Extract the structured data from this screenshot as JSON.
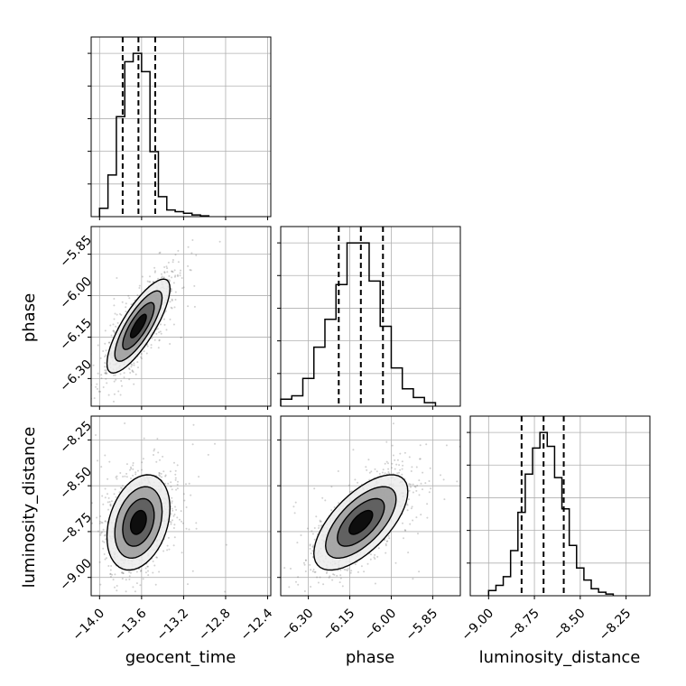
{
  "chart_data": {
    "type": "corner",
    "parameters": [
      "geocent_time",
      "phase",
      "luminosity_distance"
    ],
    "axis_labels": {
      "geocent_time": "geocent_time",
      "phase": "phase",
      "luminosity_distance": "luminosity_distance"
    },
    "ranges": {
      "geocent_time": [
        -14.08,
        -12.37
      ],
      "phase": [
        -6.4,
        -5.75
      ],
      "luminosity_distance": [
        -9.1,
        -8.12
      ]
    },
    "ticks": {
      "geocent_time": [
        {
          "value": -14.0,
          "label": "−14.0"
        },
        {
          "value": -13.6,
          "label": "−13.6"
        },
        {
          "value": -13.2,
          "label": "−13.2"
        },
        {
          "value": -12.8,
          "label": "−12.8"
        },
        {
          "value": -12.4,
          "label": "−12.4"
        }
      ],
      "phase": [
        {
          "value": -6.3,
          "label": "−6.30"
        },
        {
          "value": -6.15,
          "label": "−6.15"
        },
        {
          "value": -6.0,
          "label": "−6.00"
        },
        {
          "value": -5.85,
          "label": "−5.85"
        }
      ],
      "luminosity_distance": [
        {
          "value": -9.0,
          "label": "−9.00"
        },
        {
          "value": -8.75,
          "label": "−8.75"
        },
        {
          "value": -8.5,
          "label": "−8.50"
        },
        {
          "value": -8.25,
          "label": "−8.25"
        }
      ]
    },
    "quantiles": {
      "geocent_time": [
        -13.78,
        -13.63,
        -13.47
      ],
      "phase": [
        -6.19,
        -6.11,
        -6.03
      ],
      "luminosity_distance": [
        -8.82,
        -8.7,
        -8.59
      ]
    },
    "histograms": {
      "geocent_time": {
        "edges": [
          -14.0,
          -13.92,
          -13.84,
          -13.76,
          -13.68,
          -13.6,
          -13.52,
          -13.44,
          -13.36,
          -13.28,
          -13.2,
          -13.12,
          -13.04,
          -12.96
        ],
        "counts": [
          5,
          25,
          60,
          93,
          98,
          87,
          39,
          12,
          4,
          3,
          2,
          1,
          0.5
        ]
      },
      "phase": {
        "edges": [
          -6.4,
          -6.36,
          -6.32,
          -6.28,
          -6.24,
          -6.2,
          -6.16,
          -6.12,
          -6.08,
          -6.04,
          -6.0,
          -5.96,
          -5.92,
          -5.88,
          -5.84
        ],
        "counts": [
          4,
          6,
          16,
          34,
          50,
          70,
          94,
          94,
          72,
          46,
          22,
          10,
          5,
          2
        ]
      },
      "luminosity_distance": {
        "edges": [
          -9.0,
          -8.96,
          -8.92,
          -8.88,
          -8.84,
          -8.8,
          -8.76,
          -8.72,
          -8.68,
          -8.64,
          -8.6,
          -8.56,
          -8.52,
          -8.48,
          -8.44,
          -8.4,
          -8.36,
          -8.32
        ],
        "counts": [
          3,
          6,
          11,
          26,
          48,
          70,
          85,
          94,
          86,
          68,
          50,
          29,
          16,
          9,
          4,
          2,
          1
        ]
      }
    },
    "pairs": [
      {
        "x": "geocent_time",
        "y": "phase",
        "mean": [
          -13.63,
          -6.11
        ],
        "sd": [
          0.15,
          0.085
        ],
        "corr": 0.8,
        "contour_levels": [
          0.5,
          1.0,
          1.5,
          2.0
        ]
      },
      {
        "x": "geocent_time",
        "y": "luminosity_distance",
        "mean": [
          -13.63,
          -8.7
        ],
        "sd": [
          0.15,
          0.13
        ],
        "corr": 0.3,
        "contour_levels": [
          0.5,
          1.0,
          1.5,
          2.0
        ]
      },
      {
        "x": "phase",
        "y": "luminosity_distance",
        "mean": [
          -6.11,
          -8.7
        ],
        "sd": [
          0.085,
          0.13
        ],
        "corr": 0.65,
        "contour_levels": [
          0.5,
          1.0,
          1.5,
          2.0
        ]
      }
    ],
    "grid": true,
    "colors": {
      "line": "#000000",
      "grid": "#b0b0b0",
      "points": "#666666"
    }
  }
}
